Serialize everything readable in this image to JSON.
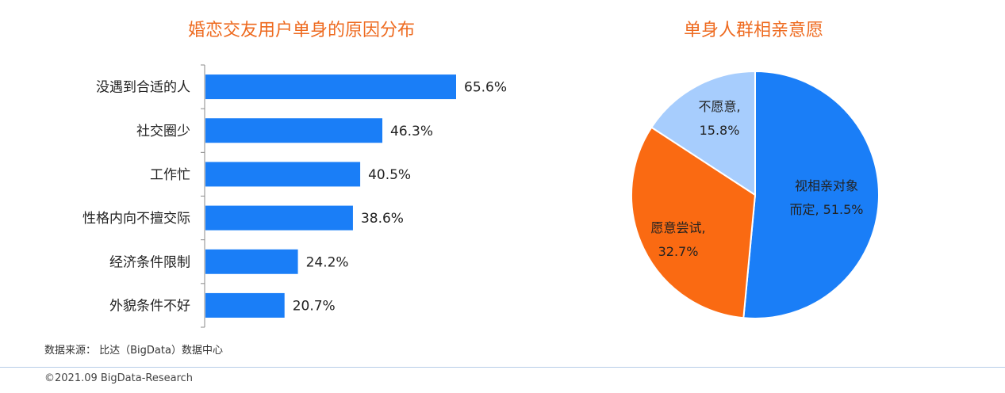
{
  "source": "数据来源： 比达（BigData）数据中心",
  "copyright": "©2021.09 BigData-Research",
  "colors": {
    "bar": "#1a7ef7",
    "title": "#ee6a1f"
  },
  "chart_data": [
    {
      "type": "bar",
      "orientation": "horizontal",
      "title": "婚恋交友用户单身的原因分布",
      "categories": [
        "没遇到合适的人",
        "社交圈少",
        "工作忙",
        "性格内向不擅交际",
        "经济条件限制",
        "外貌条件不好"
      ],
      "values": [
        65.6,
        46.3,
        40.5,
        38.6,
        24.2,
        20.7
      ],
      "value_labels": [
        "65.6%",
        "46.3%",
        "40.5%",
        "38.6%",
        "24.2%",
        "20.7%"
      ],
      "unit": "%",
      "grid": false
    },
    {
      "type": "pie",
      "title": "单身人群相亲意愿",
      "slices": [
        {
          "label": "视相亲对象",
          "label2": "而定, 51.5%",
          "value": 51.5,
          "color": "#1a7ef7"
        },
        {
          "label": "愿意尝试,",
          "label2": "32.7%",
          "value": 32.7,
          "color": "#fa6a12"
        },
        {
          "label": "不愿意,",
          "label2": "15.8%",
          "value": 15.8,
          "color": "#a7cdfd"
        }
      ]
    }
  ]
}
